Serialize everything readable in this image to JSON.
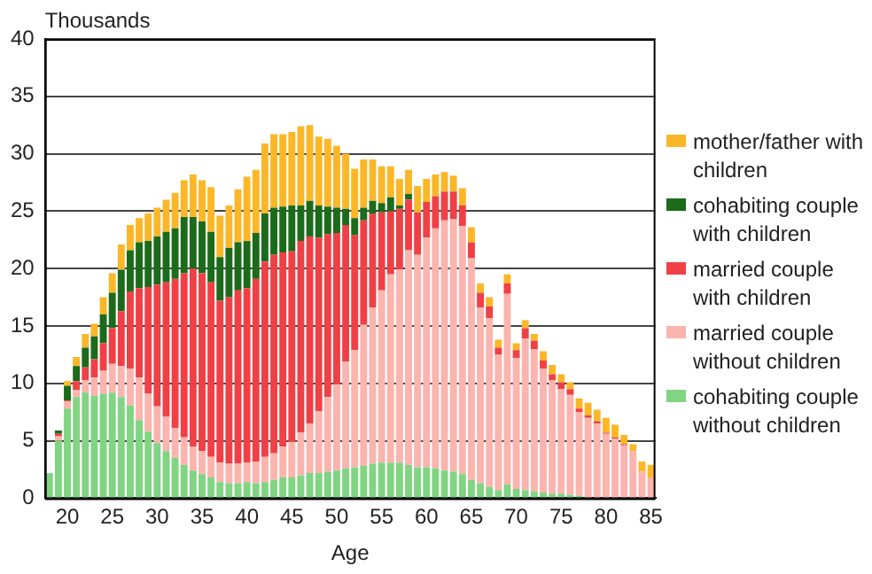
{
  "chart_data": {
    "type": "bar",
    "stacked": true,
    "xlabel": "Age",
    "ylabel": "Thousands",
    "categories": [
      null,
      null,
      "20",
      null,
      null,
      null,
      null,
      "25",
      null,
      null,
      null,
      null,
      "30",
      null,
      null,
      null,
      null,
      "35",
      null,
      null,
      null,
      null,
      "40",
      null,
      null,
      null,
      null,
      "45",
      null,
      null,
      null,
      null,
      "50",
      null,
      null,
      null,
      null,
      "55",
      null,
      null,
      null,
      null,
      "60",
      null,
      null,
      null,
      null,
      "65",
      null,
      null,
      null,
      null,
      "70",
      null,
      null,
      null,
      null,
      "75",
      null,
      null,
      null,
      null,
      "80",
      null,
      null,
      null,
      null,
      "85"
    ],
    "ylim": [
      0,
      40
    ],
    "yticks": [
      0,
      5,
      10,
      15,
      20,
      25,
      30,
      35,
      40
    ],
    "grid": "y",
    "legend": "right",
    "series": [
      {
        "name": "cohabiting couple without children",
        "color": "#80d482",
        "values": [
          2.2,
          5.0,
          7.8,
          8.8,
          9.2,
          8.9,
          9.1,
          9.2,
          8.8,
          8.1,
          6.8,
          5.8,
          4.8,
          4.1,
          3.5,
          2.9,
          2.4,
          2.1,
          1.8,
          1.4,
          1.3,
          1.3,
          1.4,
          1.3,
          1.4,
          1.6,
          1.8,
          1.8,
          2.0,
          2.2,
          2.2,
          2.3,
          2.4,
          2.6,
          2.7,
          2.8,
          3.0,
          3.1,
          3.1,
          3.1,
          2.9,
          2.7,
          2.7,
          2.6,
          2.4,
          2.3,
          2.1,
          1.6,
          1.3,
          1.0,
          0.7,
          1.2,
          0.8,
          0.7,
          0.6,
          0.5,
          0.4,
          0.4,
          0.3,
          0.2,
          0,
          0,
          0,
          0,
          0,
          0,
          0,
          0
        ]
      },
      {
        "name": "married couple without children",
        "color": "#fbb4ae",
        "values": [
          0,
          0.4,
          0.6,
          0.6,
          1.1,
          1.6,
          2.0,
          2.5,
          2.7,
          3.2,
          3.7,
          3.3,
          3.2,
          3.0,
          2.6,
          2.4,
          2.1,
          2.0,
          1.8,
          1.7,
          1.7,
          1.7,
          1.7,
          1.9,
          2.2,
          2.3,
          2.7,
          3.1,
          3.7,
          4.3,
          5.4,
          6.5,
          7.5,
          9.3,
          10.2,
          12.3,
          13.6,
          15.0,
          16.4,
          16.8,
          18.7,
          18.5,
          20.0,
          20.9,
          21.8,
          22.0,
          21.6,
          19.3,
          15.3,
          14.7,
          11.8,
          16.6,
          11.4,
          13.2,
          12.4,
          10.8,
          9.9,
          9.1,
          8.7,
          7.3,
          7.0,
          6.5,
          5.6,
          5.2,
          4.6,
          4.1,
          2.3,
          1.8
        ]
      },
      {
        "name": "married couple with children",
        "color": "#ef4046",
        "values": [
          0,
          0.2,
          0.1,
          0.8,
          1.1,
          1.6,
          2.4,
          3.1,
          4.8,
          6.7,
          7.8,
          9.3,
          10.6,
          11.7,
          13.0,
          14.3,
          15.5,
          15.5,
          15.2,
          14.1,
          14.5,
          15.1,
          15.2,
          15.9,
          17.0,
          17.3,
          16.9,
          16.6,
          16.7,
          16.3,
          15.1,
          14.2,
          13.2,
          11.9,
          10.0,
          9.1,
          8.2,
          6.8,
          5.5,
          5.3,
          4.4,
          3.7,
          3.1,
          2.8,
          2.5,
          2.4,
          1.8,
          1.4,
          1.3,
          1.0,
          0.6,
          0.9,
          0.7,
          0.9,
          0.7,
          0.7,
          0.5,
          0.6,
          0.5,
          0.3,
          0.2,
          0.2,
          0.1,
          0.1,
          0.1,
          0,
          0,
          0
        ]
      },
      {
        "name": "cohabiting couple with children",
        "color": "#1b6b1b",
        "values": [
          0,
          0.3,
          1.3,
          1.3,
          1.7,
          2.0,
          2.5,
          3.1,
          3.6,
          3.6,
          4.0,
          4.0,
          4.2,
          4.4,
          4.4,
          4.9,
          4.5,
          4.5,
          4.4,
          3.8,
          4.3,
          4.2,
          4.1,
          4.0,
          4.2,
          4.1,
          4.0,
          4.0,
          3.1,
          3.1,
          2.8,
          2.4,
          2.2,
          1.4,
          1.5,
          1.1,
          1.1,
          0.8,
          1.2,
          0.3,
          0.5,
          0,
          0,
          0,
          0,
          0,
          0,
          0,
          0,
          0,
          0,
          0,
          0,
          0,
          0,
          0,
          0,
          0,
          0,
          0,
          0,
          0,
          0,
          0,
          0,
          0,
          0,
          0
        ]
      },
      {
        "name": "mother/father with children",
        "color": "#fbb727",
        "values": [
          0,
          0,
          0.4,
          0.8,
          1.2,
          1.1,
          1.5,
          1.7,
          2.2,
          2.2,
          2.1,
          2.4,
          2.5,
          2.8,
          3.1,
          3.2,
          3.7,
          3.6,
          3.9,
          3.6,
          3.7,
          4.6,
          5.6,
          5.5,
          6.1,
          6.4,
          6.3,
          6.4,
          6.9,
          6.6,
          6.0,
          5.9,
          5.4,
          4.8,
          4.3,
          4.2,
          3.6,
          3.2,
          2.7,
          2.3,
          2.1,
          2.3,
          2.0,
          1.9,
          1.7,
          1.4,
          1.5,
          1.3,
          0.8,
          0.8,
          0.7,
          0.8,
          0.6,
          0.7,
          0.6,
          0.8,
          0.8,
          0.7,
          0.6,
          0.9,
          1.1,
          1.0,
          1.3,
          1.1,
          0.8,
          0.6,
          0.9,
          1.1
        ]
      }
    ]
  }
}
